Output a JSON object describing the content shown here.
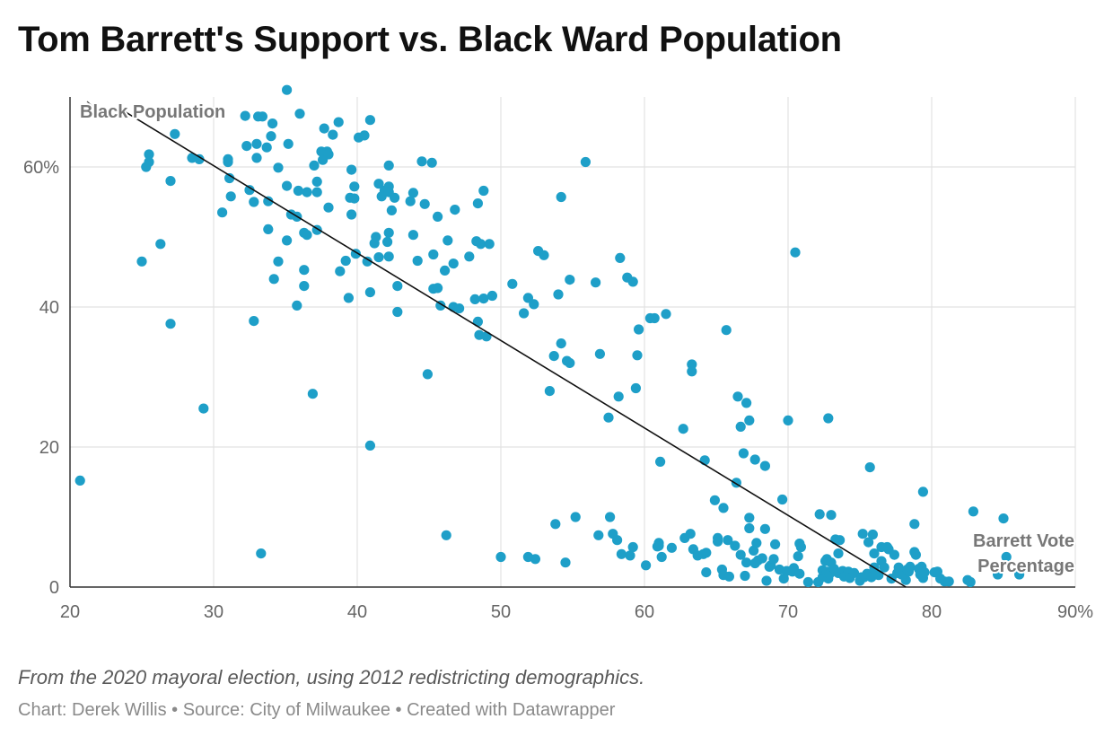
{
  "title": "Tom Barrett's Support vs. Black Ward Population",
  "notes": "From the 2020 mayoral election, using 2012 redistricting demographics.",
  "footer": {
    "chart_label": "Chart:",
    "chart_author": "Derek Willis",
    "source_label": "Source:",
    "source": "City of Milwaukee",
    "created_with": "Created with Datawrapper"
  },
  "chart_data": {
    "type": "scatter",
    "title": "Tom Barrett's Support vs. Black Ward Population",
    "xlabel": "Barrett Vote Percentage",
    "ylabel": "Black Population",
    "xlim": [
      20,
      90
    ],
    "ylim": [
      0,
      70
    ],
    "x_ticks": [
      "20",
      "30",
      "40",
      "50",
      "60",
      "70",
      "80",
      "90%"
    ],
    "y_ticks": [
      "0",
      "20",
      "40",
      "60%"
    ],
    "grid": true,
    "point_color": "#1e9fc8",
    "annotations": [
      {
        "text": "Black Population",
        "kind": "y-axis"
      },
      {
        "text": "Barrett Vote",
        "kind": "x-axis"
      },
      {
        "text": "Percentage",
        "kind": "x-axis"
      }
    ],
    "trend_line": {
      "x": [
        23.5,
        78.2
      ],
      "y": [
        68.3,
        0
      ]
    },
    "points": [
      [
        20.7,
        15.2
      ],
      [
        25.0,
        46.5
      ],
      [
        25.3,
        60.0
      ],
      [
        25.5,
        61.8
      ],
      [
        25.5,
        60.7
      ],
      [
        26.3,
        49.0
      ],
      [
        27.0,
        58.0
      ],
      [
        27.3,
        64.7
      ],
      [
        27.0,
        37.6
      ],
      [
        28.5,
        61.3
      ],
      [
        29.0,
        61.1
      ],
      [
        29.3,
        25.5
      ],
      [
        30.6,
        53.5
      ],
      [
        31.0,
        60.7
      ],
      [
        31.0,
        61.1
      ],
      [
        31.1,
        58.4
      ],
      [
        31.2,
        55.8
      ],
      [
        32.2,
        67.3
      ],
      [
        32.3,
        63.0
      ],
      [
        32.5,
        56.7
      ],
      [
        32.8,
        55.0
      ],
      [
        32.8,
        38.0
      ],
      [
        33.0,
        61.3
      ],
      [
        33.0,
        63.3
      ],
      [
        33.1,
        67.2
      ],
      [
        33.4,
        67.2
      ],
      [
        33.3,
        4.8
      ],
      [
        33.7,
        62.8
      ],
      [
        33.8,
        55.1
      ],
      [
        33.8,
        51.1
      ],
      [
        34.0,
        64.4
      ],
      [
        34.1,
        66.2
      ],
      [
        34.2,
        44.0
      ],
      [
        34.5,
        59.9
      ],
      [
        34.5,
        46.5
      ],
      [
        35.1,
        71.0
      ],
      [
        35.1,
        57.3
      ],
      [
        35.2,
        63.3
      ],
      [
        35.1,
        49.5
      ],
      [
        35.4,
        53.2
      ],
      [
        35.8,
        52.9
      ],
      [
        35.8,
        40.2
      ],
      [
        35.9,
        56.6
      ],
      [
        36.0,
        67.6
      ],
      [
        36.3,
        50.6
      ],
      [
        36.3,
        45.3
      ],
      [
        36.5,
        50.3
      ],
      [
        36.3,
        43.0
      ],
      [
        36.5,
        56.4
      ],
      [
        36.9,
        27.6
      ],
      [
        37.0,
        60.2
      ],
      [
        37.2,
        57.9
      ],
      [
        37.2,
        56.4
      ],
      [
        37.2,
        51.0
      ],
      [
        37.5,
        62.2
      ],
      [
        37.6,
        61.0
      ],
      [
        37.7,
        65.5
      ],
      [
        37.9,
        62.2
      ],
      [
        38.0,
        61.8
      ],
      [
        38.0,
        54.2
      ],
      [
        38.3,
        64.6
      ],
      [
        38.7,
        66.4
      ],
      [
        38.8,
        45.1
      ],
      [
        39.2,
        46.6
      ],
      [
        39.4,
        41.3
      ],
      [
        39.5,
        55.6
      ],
      [
        39.6,
        53.2
      ],
      [
        39.6,
        59.6
      ],
      [
        39.8,
        57.2
      ],
      [
        39.8,
        55.5
      ],
      [
        39.9,
        47.6
      ],
      [
        40.1,
        64.2
      ],
      [
        40.5,
        64.5
      ],
      [
        40.7,
        46.5
      ],
      [
        40.9,
        66.7
      ],
      [
        40.9,
        42.1
      ],
      [
        40.9,
        20.2
      ],
      [
        41.2,
        49.1
      ],
      [
        41.3,
        50.0
      ],
      [
        41.5,
        57.6
      ],
      [
        41.5,
        47.1
      ],
      [
        41.7,
        55.8
      ],
      [
        41.9,
        56.6
      ],
      [
        42.1,
        49.3
      ],
      [
        42.2,
        60.2
      ],
      [
        42.2,
        57.2
      ],
      [
        42.2,
        56.4
      ],
      [
        42.2,
        47.2
      ],
      [
        42.2,
        50.6
      ],
      [
        42.4,
        53.8
      ],
      [
        42.6,
        55.6
      ],
      [
        42.8,
        43.0
      ],
      [
        42.8,
        39.3
      ],
      [
        43.7,
        55.1
      ],
      [
        43.9,
        56.3
      ],
      [
        43.9,
        50.3
      ],
      [
        44.2,
        46.6
      ],
      [
        44.5,
        60.8
      ],
      [
        44.7,
        54.7
      ],
      [
        44.9,
        30.4
      ],
      [
        45.2,
        60.6
      ],
      [
        45.3,
        47.5
      ],
      [
        45.3,
        42.6
      ],
      [
        45.6,
        42.7
      ],
      [
        45.6,
        52.9
      ],
      [
        45.8,
        40.2
      ],
      [
        46.1,
        45.2
      ],
      [
        46.2,
        7.4
      ],
      [
        46.3,
        49.5
      ],
      [
        46.7,
        46.2
      ],
      [
        46.7,
        40.0
      ],
      [
        46.8,
        53.9
      ],
      [
        47.1,
        39.8
      ],
      [
        47.8,
        47.2
      ],
      [
        48.2,
        41.1
      ],
      [
        48.3,
        49.4
      ],
      [
        48.4,
        37.9
      ],
      [
        48.4,
        54.8
      ],
      [
        48.5,
        36.0
      ],
      [
        48.6,
        49.0
      ],
      [
        48.8,
        56.6
      ],
      [
        48.8,
        41.2
      ],
      [
        49.0,
        35.8
      ],
      [
        49.2,
        49.0
      ],
      [
        49.4,
        41.6
      ],
      [
        50.0,
        4.3
      ],
      [
        50.8,
        43.3
      ],
      [
        51.6,
        39.1
      ],
      [
        51.9,
        4.3
      ],
      [
        51.9,
        41.3
      ],
      [
        52.3,
        40.4
      ],
      [
        52.4,
        4.0
      ],
      [
        52.6,
        48.0
      ],
      [
        53.0,
        47.4
      ],
      [
        53.4,
        28.0
      ],
      [
        53.7,
        33.0
      ],
      [
        53.8,
        9.0
      ],
      [
        54.0,
        41.8
      ],
      [
        54.2,
        55.7
      ],
      [
        54.2,
        34.8
      ],
      [
        54.5,
        3.5
      ],
      [
        54.6,
        32.3
      ],
      [
        54.8,
        43.9
      ],
      [
        54.8,
        32.0
      ],
      [
        55.2,
        10.0
      ],
      [
        55.9,
        60.7
      ],
      [
        56.6,
        43.5
      ],
      [
        56.8,
        7.4
      ],
      [
        56.9,
        33.3
      ],
      [
        57.5,
        24.2
      ],
      [
        57.6,
        10.0
      ],
      [
        57.8,
        7.6
      ],
      [
        58.1,
        6.7
      ],
      [
        58.2,
        27.2
      ],
      [
        58.3,
        47.0
      ],
      [
        58.4,
        4.7
      ],
      [
        58.8,
        44.2
      ],
      [
        59.0,
        4.5
      ],
      [
        59.2,
        5.7
      ],
      [
        59.2,
        43.6
      ],
      [
        59.4,
        28.4
      ],
      [
        59.5,
        33.1
      ],
      [
        59.6,
        36.8
      ],
      [
        60.1,
        3.1
      ],
      [
        60.4,
        38.4
      ],
      [
        60.7,
        38.4
      ],
      [
        60.9,
        5.8
      ],
      [
        61.0,
        6.3
      ],
      [
        61.0,
        5.9
      ],
      [
        61.1,
        17.9
      ],
      [
        61.2,
        4.3
      ],
      [
        61.5,
        39.0
      ],
      [
        61.9,
        5.6
      ],
      [
        62.7,
        22.6
      ],
      [
        62.8,
        7.0
      ],
      [
        63.2,
        7.6
      ],
      [
        63.3,
        31.8
      ],
      [
        63.3,
        30.8
      ],
      [
        63.4,
        5.4
      ],
      [
        63.7,
        4.5
      ],
      [
        64.1,
        4.7
      ],
      [
        64.2,
        18.1
      ],
      [
        64.3,
        2.1
      ],
      [
        64.3,
        4.9
      ],
      [
        64.9,
        12.4
      ],
      [
        65.1,
        7.0
      ],
      [
        65.1,
        6.5
      ],
      [
        65.4,
        2.5
      ],
      [
        65.5,
        11.3
      ],
      [
        65.5,
        1.7
      ],
      [
        65.7,
        36.7
      ],
      [
        65.8,
        6.7
      ],
      [
        65.9,
        1.5
      ],
      [
        66.3,
        5.9
      ],
      [
        66.4,
        14.9
      ],
      [
        66.5,
        27.2
      ],
      [
        66.7,
        22.9
      ],
      [
        66.7,
        4.6
      ],
      [
        66.9,
        19.1
      ],
      [
        67.0,
        1.6
      ],
      [
        67.1,
        26.3
      ],
      [
        67.1,
        3.5
      ],
      [
        67.3,
        8.4
      ],
      [
        67.3,
        9.9
      ],
      [
        67.3,
        23.8
      ],
      [
        67.6,
        5.2
      ],
      [
        67.7,
        3.4
      ],
      [
        67.7,
        18.2
      ],
      [
        67.8,
        6.3
      ],
      [
        67.9,
        3.8
      ],
      [
        68.2,
        4.1
      ],
      [
        68.4,
        8.3
      ],
      [
        68.4,
        17.3
      ],
      [
        68.5,
        0.9
      ],
      [
        68.7,
        2.9
      ],
      [
        68.8,
        3.1
      ],
      [
        69.0,
        4.0
      ],
      [
        69.1,
        6.1
      ],
      [
        69.4,
        2.5
      ],
      [
        69.6,
        12.5
      ],
      [
        69.7,
        1.2
      ],
      [
        69.9,
        2.3
      ],
      [
        70.0,
        23.8
      ],
      [
        70.3,
        2.2
      ],
      [
        70.4,
        2.7
      ],
      [
        70.5,
        47.8
      ],
      [
        70.7,
        4.4
      ],
      [
        70.8,
        1.9
      ],
      [
        70.8,
        6.2
      ],
      [
        70.9,
        5.7
      ],
      [
        71.4,
        0.7
      ],
      [
        72.1,
        0.7
      ],
      [
        72.2,
        10.4
      ],
      [
        72.4,
        1.4
      ],
      [
        72.4,
        2.4
      ],
      [
        72.6,
        3.7
      ],
      [
        72.7,
        4.0
      ],
      [
        72.7,
        2.2
      ],
      [
        72.8,
        1.2
      ],
      [
        72.8,
        24.1
      ],
      [
        72.9,
        1.9
      ],
      [
        73.0,
        10.3
      ],
      [
        73.0,
        3.5
      ],
      [
        73.2,
        2.6
      ],
      [
        73.3,
        6.8
      ],
      [
        73.5,
        2.0
      ],
      [
        73.5,
        4.8
      ],
      [
        73.6,
        6.7
      ],
      [
        73.8,
        2.3
      ],
      [
        73.9,
        1.5
      ],
      [
        74.2,
        2.2
      ],
      [
        74.3,
        1.3
      ],
      [
        74.6,
        2.0
      ],
      [
        75.0,
        0.9
      ],
      [
        75.1,
        1.4
      ],
      [
        75.2,
        7.6
      ],
      [
        75.3,
        1.4
      ],
      [
        75.5,
        1.9
      ],
      [
        75.6,
        6.4
      ],
      [
        75.7,
        17.1
      ],
      [
        75.8,
        1.4
      ],
      [
        75.9,
        7.5
      ],
      [
        76.0,
        4.8
      ],
      [
        76.0,
        2.8
      ],
      [
        76.1,
        2.0
      ],
      [
        76.3,
        1.7
      ],
      [
        76.5,
        5.7
      ],
      [
        76.5,
        3.7
      ],
      [
        76.7,
        2.8
      ],
      [
        76.9,
        5.7
      ],
      [
        77.0,
        5.4
      ],
      [
        77.2,
        1.2
      ],
      [
        77.4,
        4.6
      ],
      [
        77.6,
        2.0
      ],
      [
        77.7,
        2.8
      ],
      [
        77.9,
        1.8
      ],
      [
        78.2,
        1.0
      ],
      [
        78.3,
        2.5
      ],
      [
        78.4,
        2.2
      ],
      [
        78.5,
        2.9
      ],
      [
        78.8,
        9.0
      ],
      [
        78.8,
        5.0
      ],
      [
        78.9,
        4.6
      ],
      [
        79.1,
        2.6
      ],
      [
        79.2,
        1.8
      ],
      [
        79.3,
        2.9
      ],
      [
        79.4,
        1.3
      ],
      [
        79.4,
        13.6
      ],
      [
        79.5,
        2.1
      ],
      [
        80.2,
        2.1
      ],
      [
        80.4,
        2.2
      ],
      [
        80.6,
        1.2
      ],
      [
        80.9,
        0.8
      ],
      [
        81.2,
        0.8
      ],
      [
        82.5,
        1.0
      ],
      [
        82.7,
        0.7
      ],
      [
        82.9,
        10.8
      ],
      [
        84.6,
        1.8
      ],
      [
        85.0,
        9.8
      ],
      [
        85.2,
        4.3
      ],
      [
        86.1,
        1.8
      ]
    ]
  }
}
